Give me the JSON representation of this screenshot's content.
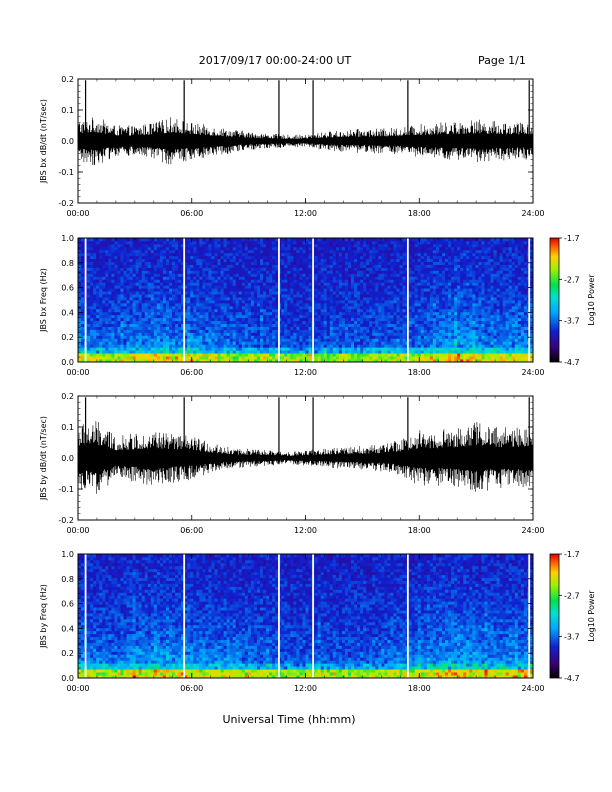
{
  "header": {
    "title": "2017/09/17   00:00-24:00 UT",
    "page": "Page 1/1"
  },
  "footer": {
    "xlabel": "Universal Time (hh:mm)"
  },
  "chart_data": [
    {
      "type": "line",
      "id": "bx-waveform",
      "ylabel": "JBS bx dB/dt (nT/sec)",
      "xlabel": "",
      "xlim": [
        "00:00",
        "24:00"
      ],
      "xticks": [
        "00:00",
        "06:00",
        "12:00",
        "18:00",
        "24:00"
      ],
      "ylim": [
        -0.2,
        0.2
      ],
      "yticks": [
        "-0.2",
        "-0.1",
        "0.0",
        "0.1",
        "0.2"
      ],
      "envelope_hours": [
        0,
        1,
        2,
        3,
        4,
        5,
        6,
        7,
        8,
        9,
        10,
        11,
        12,
        13,
        14,
        15,
        16,
        17,
        18,
        19,
        20,
        21,
        22,
        23,
        24
      ],
      "envelope_amplitude": [
        0.07,
        0.08,
        0.05,
        0.05,
        0.06,
        0.08,
        0.06,
        0.05,
        0.04,
        0.03,
        0.025,
        0.02,
        0.02,
        0.03,
        0.035,
        0.04,
        0.04,
        0.045,
        0.055,
        0.06,
        0.065,
        0.07,
        0.065,
        0.06,
        0.06
      ],
      "spikes_hours": [
        0.4,
        5.6,
        10.6,
        12.4,
        17.4,
        23.8
      ],
      "spike_values": [
        0.2,
        0.2,
        0.2,
        0.2,
        0.2,
        0.2
      ]
    },
    {
      "type": "heatmap",
      "id": "bx-spectrogram",
      "ylabel": "JBS bx Freq (Hz)",
      "xlim": [
        "00:00",
        "24:00"
      ],
      "xticks": [
        "00:00",
        "06:00",
        "12:00",
        "18:00",
        "24:00"
      ],
      "ylim": [
        0.0,
        1.0
      ],
      "yticks": [
        "0.0",
        "0.2",
        "0.4",
        "0.6",
        "0.8",
        "1.0"
      ],
      "colorbar": {
        "label": "Log10 Power",
        "range": [
          -4.7,
          -1.7
        ],
        "ticks": [
          "-1.7",
          "-2.7",
          "-3.7",
          "-4.7"
        ]
      },
      "gap_hours": [
        0.4,
        5.6,
        10.6,
        12.4,
        17.4,
        23.8
      ],
      "activity_hours": [
        0,
        2,
        3,
        3.5,
        4,
        4.5,
        5,
        6,
        7.5,
        12,
        18,
        19,
        20,
        21,
        22,
        23,
        24
      ],
      "activity_level": [
        0.5,
        0.45,
        0.6,
        0.55,
        0.7,
        0.6,
        0.55,
        0.6,
        0.5,
        0.3,
        0.45,
        0.6,
        0.75,
        0.65,
        0.55,
        0.6,
        0.6
      ]
    },
    {
      "type": "line",
      "id": "by-waveform",
      "ylabel": "JBS by dB/dt (nT/sec)",
      "xlabel": "",
      "xlim": [
        "00:00",
        "24:00"
      ],
      "xticks": [
        "00:00",
        "06:00",
        "12:00",
        "18:00",
        "24:00"
      ],
      "ylim": [
        -0.2,
        0.2
      ],
      "yticks": [
        "-0.2",
        "-0.1",
        "0.0",
        "0.1",
        "0.2"
      ],
      "envelope_hours": [
        0,
        1,
        2,
        3,
        4,
        5,
        6,
        7,
        8,
        9,
        10,
        11,
        12,
        13,
        14,
        15,
        16,
        17,
        18,
        19,
        20,
        21,
        22,
        23,
        24
      ],
      "envelope_amplitude": [
        0.11,
        0.12,
        0.07,
        0.08,
        0.09,
        0.08,
        0.07,
        0.05,
        0.035,
        0.03,
        0.025,
        0.02,
        0.025,
        0.03,
        0.035,
        0.04,
        0.045,
        0.06,
        0.09,
        0.09,
        0.1,
        0.12,
        0.1,
        0.1,
        0.11
      ],
      "spikes_hours": [
        0.4,
        5.6,
        10.6,
        12.4,
        17.4,
        23.8
      ],
      "spike_values": [
        0.2,
        0.2,
        0.2,
        0.2,
        0.2,
        0.2
      ]
    },
    {
      "type": "heatmap",
      "id": "by-spectrogram",
      "ylabel": "JBS by Freq (Hz)",
      "xlim": [
        "00:00",
        "24:00"
      ],
      "xticks": [
        "00:00",
        "06:00",
        "12:00",
        "18:00",
        "24:00"
      ],
      "ylim": [
        0.0,
        1.0
      ],
      "yticks": [
        "0.0",
        "0.2",
        "0.4",
        "0.6",
        "0.8",
        "1.0"
      ],
      "colorbar": {
        "label": "Log10 Power",
        "range": [
          -4.7,
          -1.7
        ],
        "ticks": [
          "-1.7",
          "-2.7",
          "-3.7",
          "-4.7"
        ]
      },
      "gap_hours": [
        0.4,
        5.6,
        10.6,
        12.4,
        17.4,
        23.8
      ],
      "activity_hours": [
        0,
        2,
        3,
        3.5,
        4,
        4.5,
        5,
        6,
        7.5,
        12,
        18,
        19,
        20,
        21,
        22,
        23,
        24
      ],
      "activity_level": [
        0.55,
        0.5,
        0.65,
        0.6,
        0.75,
        0.65,
        0.6,
        0.65,
        0.55,
        0.35,
        0.5,
        0.65,
        0.8,
        0.7,
        0.6,
        0.65,
        0.65
      ]
    }
  ]
}
